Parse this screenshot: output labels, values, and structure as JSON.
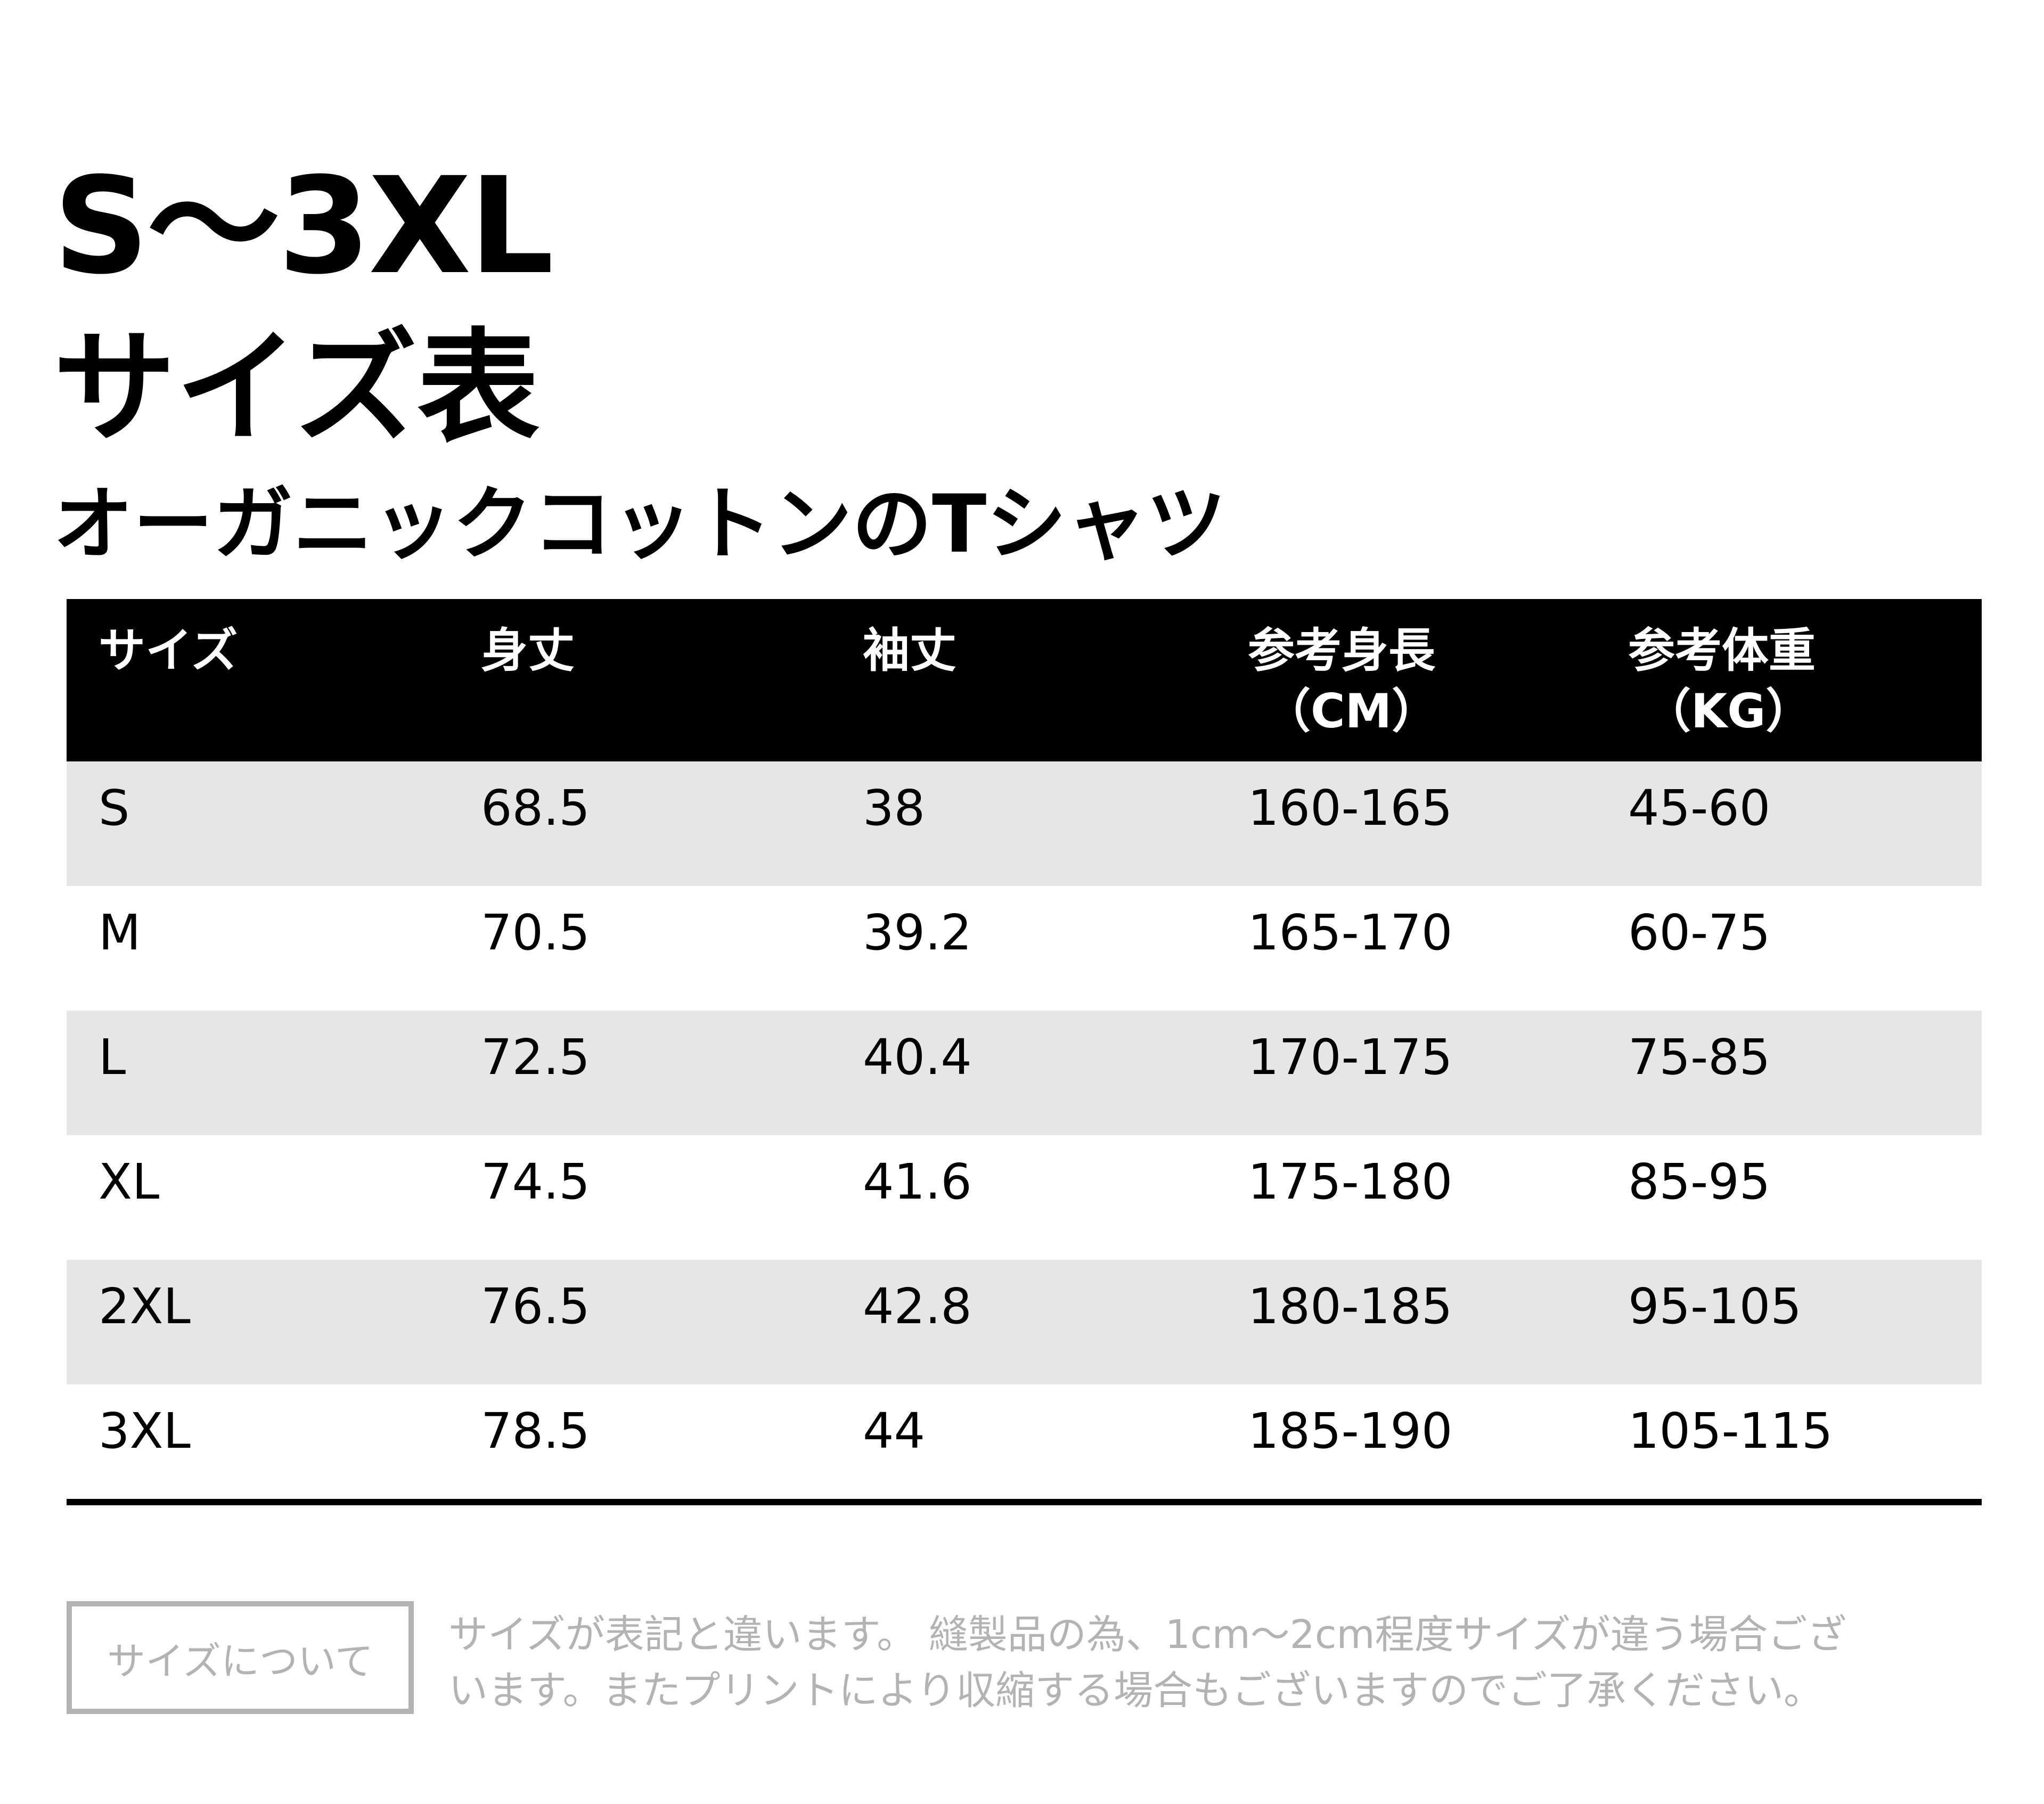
{
  "title": {
    "line1": "S～3XL",
    "line2": "サイズ表",
    "subtitle": "オーガニックコットンのTシャツ"
  },
  "table": {
    "headers": [
      {
        "label": "サイズ",
        "unit": ""
      },
      {
        "label": "身丈",
        "unit": ""
      },
      {
        "label": "袖丈",
        "unit": ""
      },
      {
        "label": "参考身長",
        "unit": "（CM）"
      },
      {
        "label": "参考体重",
        "unit": "（KG）"
      }
    ],
    "rows": [
      [
        "S",
        "68.5",
        "38",
        "160-165",
        "45-60"
      ],
      [
        "M",
        "70.5",
        "39.2",
        "165-170",
        "60-75"
      ],
      [
        "L",
        "72.5",
        "40.4",
        "170-175",
        "75-85"
      ],
      [
        "XL",
        "74.5",
        "41.6",
        "175-180",
        "85-95"
      ],
      [
        "2XL",
        "76.5",
        "42.8",
        "180-185",
        "95-105"
      ],
      [
        "3XL",
        "78.5",
        "44",
        "185-190",
        "105-115"
      ]
    ]
  },
  "footer": {
    "badge_label": "サイズについて",
    "note_line1": "サイズが表記と違います。 縫製品の為、1cm～2cm程度サイズが違う場合ござ",
    "note_line2": "います。またプリントにより収縮する場合もございますのでご了承ください。"
  },
  "colors": {
    "header_bg": "#000000",
    "header_text": "#ffffff",
    "shaded_row": "#e6e6e6",
    "muted_text": "#b3b3b3"
  }
}
